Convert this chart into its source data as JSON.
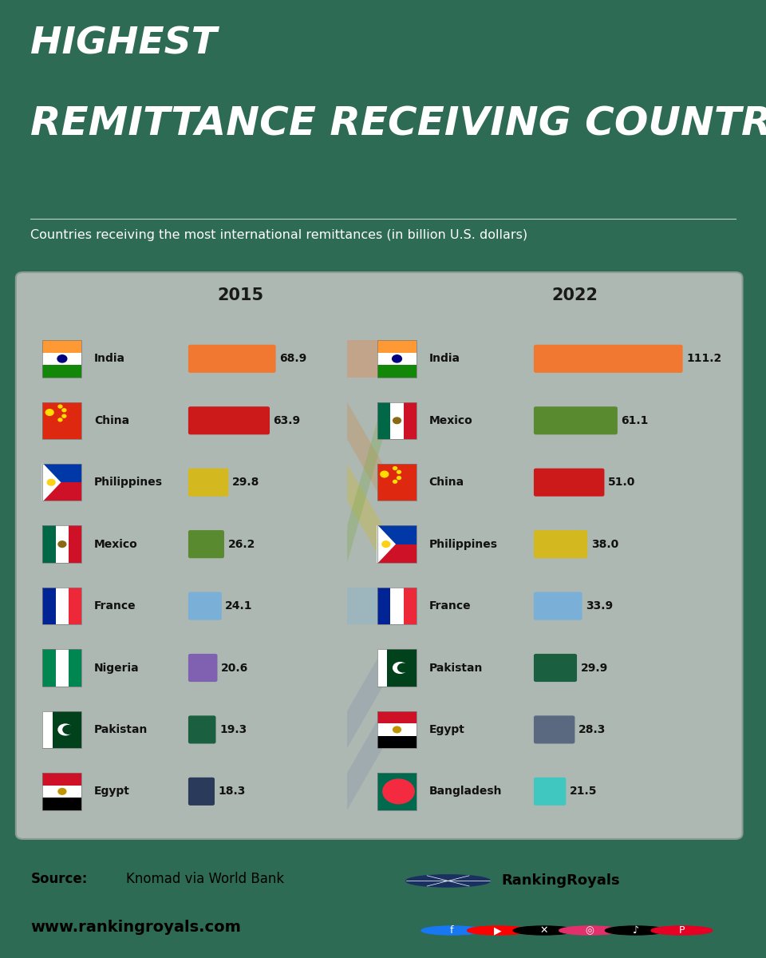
{
  "bg_color": "#2d6b55",
  "panel_color": "#adb8b2",
  "footer_color": "#e8a0b8",
  "title_line1": "HIGHEST",
  "title_line2": "REMITTANCE RECEIVING COUNTRIES",
  "subtitle": "Countries receiving the most international remittances (in billion U.S. dollars)",
  "year_left": "2015",
  "year_right": "2022",
  "left_data": [
    {
      "country": "India",
      "value": 68.9,
      "color": "#f07830",
      "flag": "india"
    },
    {
      "country": "China",
      "value": 63.9,
      "color": "#cc1a1a",
      "flag": "china"
    },
    {
      "country": "Philippines",
      "value": 29.8,
      "color": "#d4b820",
      "flag": "philippines"
    },
    {
      "country": "Mexico",
      "value": 26.2,
      "color": "#5a8a30",
      "flag": "mexico"
    },
    {
      "country": "France",
      "value": 24.1,
      "color": "#7ab0d8",
      "flag": "france"
    },
    {
      "country": "Nigeria",
      "value": 20.6,
      "color": "#8060b0",
      "flag": "nigeria"
    },
    {
      "country": "Pakistan",
      "value": 19.3,
      "color": "#1a6040",
      "flag": "pakistan"
    },
    {
      "country": "Egypt",
      "value": 18.3,
      "color": "#2a3a5a",
      "flag": "egypt"
    }
  ],
  "right_data": [
    {
      "country": "India",
      "value": 111.2,
      "color": "#f07830",
      "flag": "india"
    },
    {
      "country": "Mexico",
      "value": 61.1,
      "color": "#5a8a30",
      "flag": "mexico"
    },
    {
      "country": "China",
      "value": 51.0,
      "color": "#cc1a1a",
      "flag": "china"
    },
    {
      "country": "Philippines",
      "value": 38.0,
      "color": "#d4b820",
      "flag": "philippines"
    },
    {
      "country": "France",
      "value": 33.9,
      "color": "#7ab0d8",
      "flag": "france"
    },
    {
      "country": "Pakistan",
      "value": 29.9,
      "color": "#1a6040",
      "flag": "pakistan"
    },
    {
      "country": "Egypt",
      "value": 28.3,
      "color": "#5a6880",
      "flag": "egypt"
    },
    {
      "country": "Bangladesh",
      "value": 21.5,
      "color": "#40c8c0",
      "flag": "bangladesh"
    }
  ],
  "sankey_colors": {
    "India": "#f07830",
    "China": "#cc8844",
    "Philippines": "#d4b820",
    "Mexico": "#7aaa40",
    "France": "#7ab0d8",
    "Nigeria": "#8060b0",
    "Pakistan": "#8090a8",
    "Egypt": "#8090a8",
    "Bangladesh": "#40c8c0"
  }
}
